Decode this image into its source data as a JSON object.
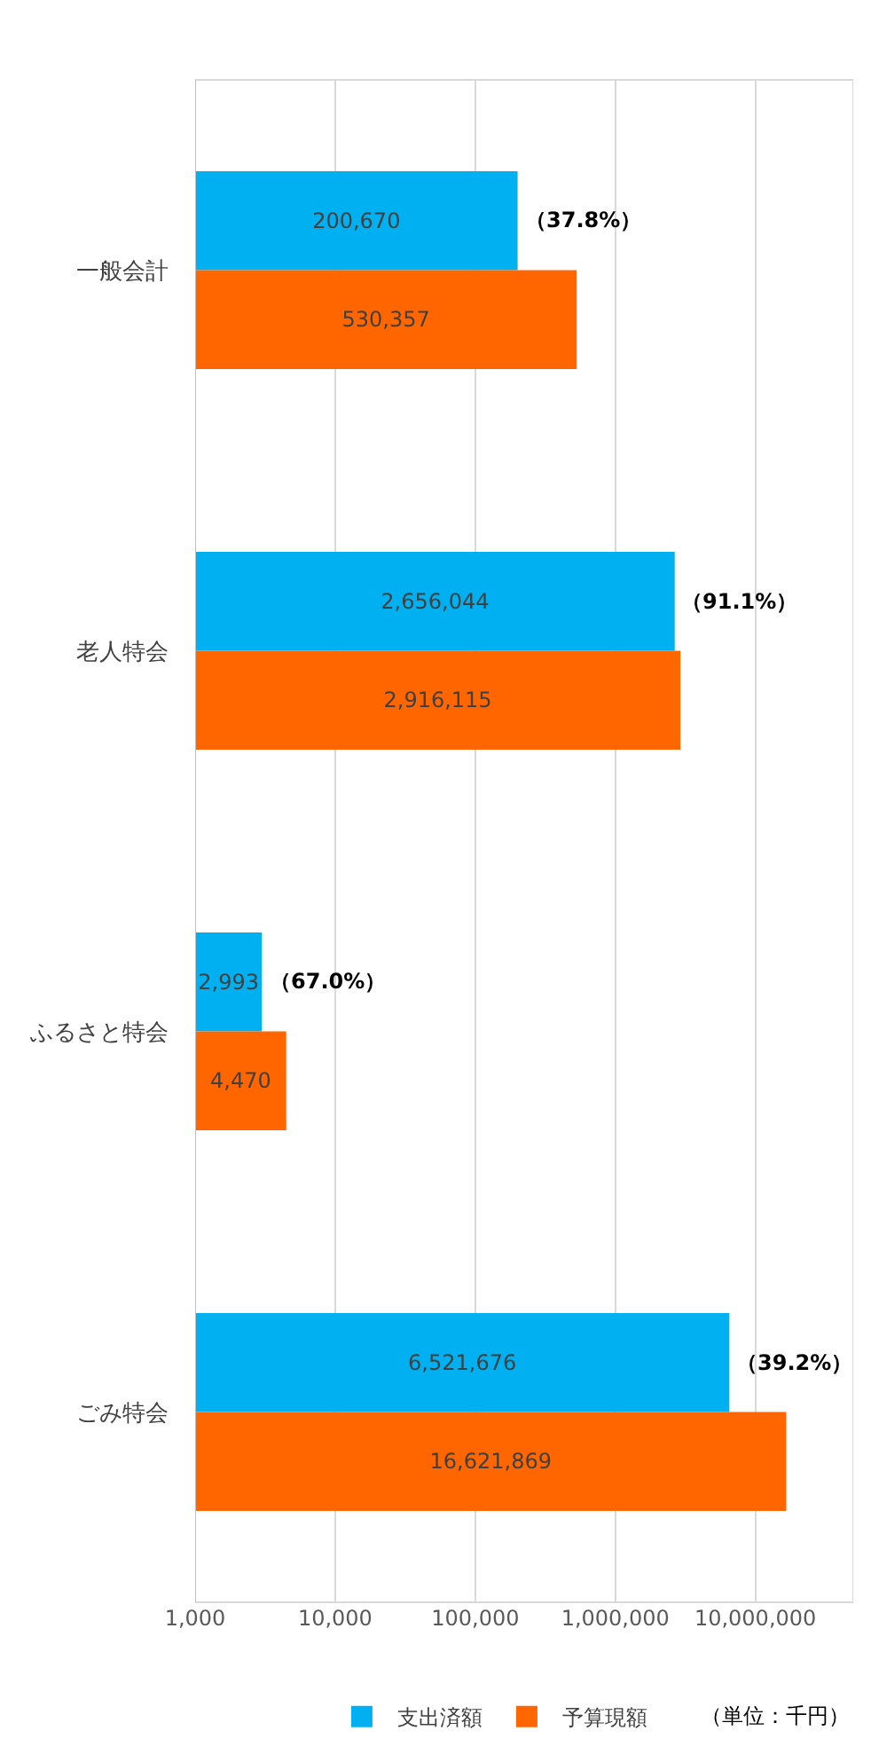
{
  "chart_data": {
    "type": "bar",
    "orientation": "horizontal",
    "log": "x",
    "categories": [
      "一般会計",
      "老人特会",
      "ふるさと特会",
      "ごみ特会"
    ],
    "series": [
      {
        "name": "支出済額",
        "color": "#00b0f0",
        "values": [
          200670,
          2656044,
          2993,
          6521676
        ],
        "value_labels": [
          "200,670",
          "2,656,044",
          "2,993",
          "6,521,676"
        ]
      },
      {
        "name": "予算現額",
        "color": "#ff6600",
        "values": [
          530357,
          2916115,
          4470,
          16621869
        ],
        "value_labels": [
          "530,357",
          "2,916,115",
          "4,470",
          "16,621,869"
        ]
      }
    ],
    "xlim": [
      1000,
      50000000
    ],
    "xticks": [
      {
        "value": 1000,
        "label": "1,000"
      },
      {
        "value": 10000,
        "label": "10,000"
      },
      {
        "value": 100000,
        "label": "100,000"
      },
      {
        "value": 1000000,
        "label": "1,000,000"
      },
      {
        "value": 10000000,
        "label": "10,000,000"
      }
    ],
    "grid": "x",
    "legend": "bottom",
    "annotations": [
      {
        "text": "（37.8%）",
        "x": 200670,
        "y": "一般会計"
      },
      {
        "text": "（91.1%）",
        "x": 2656044,
        "y": "老人特会"
      },
      {
        "text": "（67.0%）",
        "x": 2993,
        "y": "ふるさと特会"
      },
      {
        "text": "（39.2%）",
        "x": 6521676,
        "y": "ごみ特会"
      },
      "（単位：千円）"
    ]
  }
}
